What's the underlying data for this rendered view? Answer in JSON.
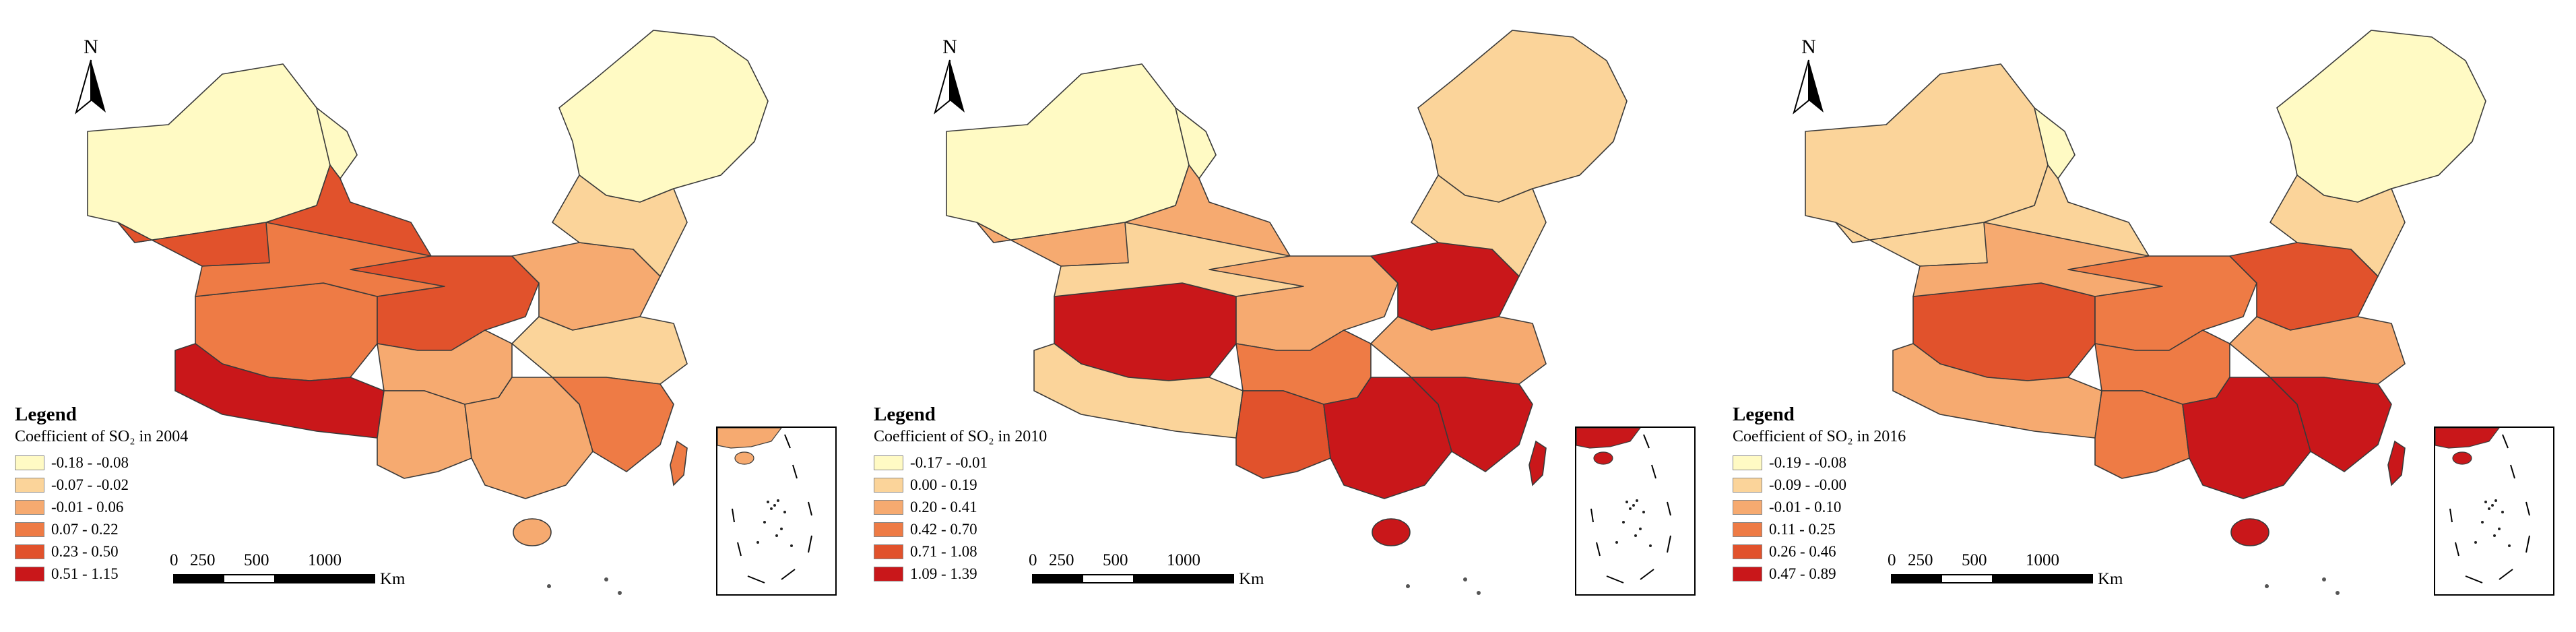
{
  "colors": {
    "class_1": "#fffac4",
    "class_2": "#fbd49a",
    "class_3": "#f6aa70",
    "class_4": "#ee7b45",
    "class_5": "#e1522c",
    "class_6": "#c9171a",
    "boundary": "#3a3a3a"
  },
  "panels": [
    {
      "north_label": "N",
      "legend_title": "Legend",
      "legend_subtitle": "Coefficient of SO₂ in 2004",
      "legend_items": [
        "-0.18 - -0.08",
        "-0.07 - -0.02",
        "-0.01 - 0.06",
        "0.07 - 0.22",
        "0.23 - 0.50",
        "0.51 - 1.15"
      ],
      "scale_labels": [
        "0",
        "250",
        "500",
        "1000"
      ],
      "scale_unit": "Km",
      "region_classes": [
        1,
        1,
        5,
        4,
        4,
        6,
        5,
        3,
        3,
        3,
        2,
        1,
        2,
        3,
        4
      ]
    },
    {
      "north_label": "N",
      "legend_title": "Legend",
      "legend_subtitle": "Coefficient of SO₂ in 2010",
      "legend_items": [
        "-0.17 - -0.01",
        "0.00 - 0.19",
        "0.20 - 0.41",
        "0.42 - 0.70",
        "0.71 - 1.08",
        "1.09 - 1.39"
      ],
      "scale_labels": [
        "0",
        "250",
        "500",
        "1000"
      ],
      "scale_unit": "Km",
      "region_classes": [
        1,
        1,
        3,
        6,
        2,
        2,
        3,
        6,
        4,
        5,
        3,
        2,
        2,
        6,
        6
      ]
    },
    {
      "north_label": "N",
      "legend_title": "Legend",
      "legend_subtitle": "Coefficient of SO₂ in 2016",
      "legend_items": [
        "-0.19 - -0.08",
        "-0.09 - -0.00",
        "-0.01 - 0.10",
        "0.11 - 0.25",
        "0.26 - 0.46",
        "0.47 - 0.89"
      ],
      "scale_labels": [
        "0",
        "250",
        "500",
        "1000"
      ],
      "scale_unit": "Km",
      "region_classes": [
        2,
        1,
        2,
        5,
        3,
        3,
        4,
        5,
        4,
        4,
        3,
        1,
        2,
        6,
        6
      ]
    }
  ]
}
